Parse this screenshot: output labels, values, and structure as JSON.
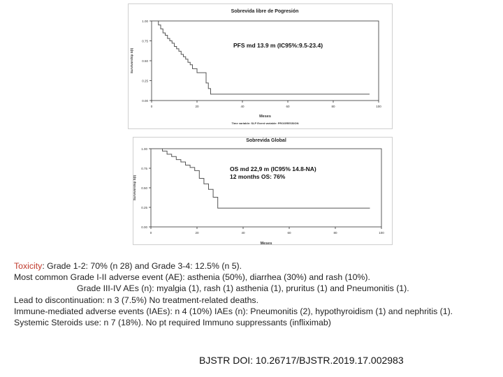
{
  "chart_data": [
    {
      "type": "line",
      "title": "Sobrevida libre de Pogresión",
      "xlabel": "Meses",
      "ylabel": "Survivorship S(t)",
      "xlim": [
        0,
        100
      ],
      "ylim": [
        0,
        1
      ],
      "x_ticks": [
        "0",
        "20",
        "40",
        "60",
        "80",
        "100"
      ],
      "y_ticks": [
        "0.00",
        "0.25",
        "0.50",
        "0.75",
        "1.00"
      ],
      "footnote": "Time variable: SLP   Event variable: PROGRESSION",
      "annotation": [
        "PFS md 13.9 m (IC95%:9.5-23.4)"
      ],
      "series": [
        {
          "x": [
            0,
            2,
            3,
            4,
            5,
            6,
            7,
            8,
            9,
            10,
            11,
            12,
            13,
            14,
            15,
            16,
            17,
            18,
            20,
            23,
            24,
            25,
            26,
            96
          ],
          "y": [
            1.0,
            1.0,
            0.95,
            0.9,
            0.85,
            0.82,
            0.78,
            0.75,
            0.72,
            0.68,
            0.65,
            0.62,
            0.58,
            0.55,
            0.52,
            0.48,
            0.45,
            0.4,
            0.35,
            0.35,
            0.22,
            0.15,
            0.08,
            0.08
          ]
        }
      ]
    },
    {
      "type": "line",
      "title": "Sobrevida Global",
      "xlabel": "Meses",
      "ylabel": "Survivorship S(t)",
      "xlim": [
        0,
        100
      ],
      "ylim": [
        0,
        1
      ],
      "x_ticks": [
        "0",
        "20",
        "40",
        "60",
        "80",
        "100"
      ],
      "y_ticks": [
        "0.00",
        "0.25",
        "0.50",
        "0.75",
        "1.00"
      ],
      "annotation": [
        "OS md 22,9 m (IC95% 14.8-NA)",
        "12 months OS: 76%"
      ],
      "series": [
        {
          "x": [
            0,
            3,
            5,
            7,
            9,
            11,
            13,
            15,
            17,
            19,
            21,
            23,
            25,
            27,
            29,
            95
          ],
          "y": [
            1.0,
            1.0,
            0.97,
            0.93,
            0.9,
            0.86,
            0.83,
            0.79,
            0.76,
            0.72,
            0.62,
            0.55,
            0.48,
            0.38,
            0.24,
            0.24
          ]
        }
      ]
    }
  ],
  "toxicity": {
    "label": "Toxicity",
    "line1_rest": ": Grade 1-2: 70% (n 28) and Grade 3-4: 12.5% (n 5).",
    "line2": "Most common Grade I-II adverse event (AE): asthenia (50%), diarrhea (30%) and rash (10%).",
    "line3": "Grade III-IV AEs (n): myalgia (1), rash (1) asthenia (1), pruritus (1) and Pneumonitis (1).",
    "line4": "Lead to discontinuation: n 3 (7.5%)  No treatment-related deaths.",
    "line5": "Immune-mediated adverse events (IAEs): n 4 (10%)  IAEs (n): Pneumonitis (2), hypothyroidism (1) and nephritis (1).",
    "line6": "Systemic Steroids use: n 7 (18%). No pt required Immuno suppressants (infliximab)"
  },
  "doi": "BJSTR DOI: 10.26717/BJSTR.2019.17.002983",
  "colors": {
    "accent": "#c0392b",
    "curve": "#555555",
    "axis": "#333333"
  }
}
